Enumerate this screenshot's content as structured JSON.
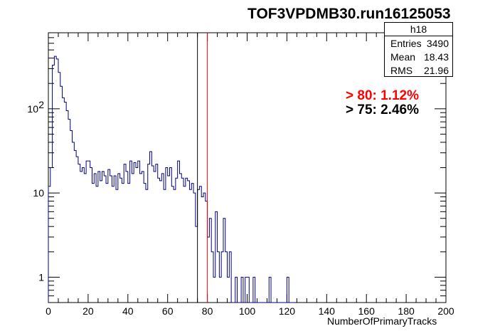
{
  "title": "TOF3VPDMB30.run16125053",
  "stats": {
    "name": "h18",
    "rows": [
      {
        "label": "Entries",
        "value": "3490"
      },
      {
        "label": "Mean",
        "value": "18.43"
      },
      {
        "label": "RMS",
        "value": "21.96"
      }
    ]
  },
  "annotations": {
    "red": "> 80: 1.12%",
    "black": "> 75: 2.46%"
  },
  "colors": {
    "histogram": "#000080",
    "cut80": "#ff0000",
    "cut75": "#000000"
  },
  "chart_data": {
    "type": "line",
    "histogram_style": "step",
    "title": "TOF3VPDMB30.run16125053",
    "xlabel": "NumberOfPrimaryTracks",
    "ylabel": "",
    "xlim": [
      0,
      200
    ],
    "ylim": [
      0.5,
      800
    ],
    "y_scale": "log",
    "x_ticks": [
      0,
      20,
      40,
      60,
      80,
      100,
      120,
      140,
      160,
      180,
      200
    ],
    "y_ticks": [
      {
        "value": 1,
        "label": "1"
      },
      {
        "value": 10,
        "label": "10"
      },
      {
        "value": 100,
        "label": "10",
        "sup": "2"
      }
    ],
    "bin_width": 1,
    "cut_lines": [
      {
        "x": 75,
        "color": "#000000"
      },
      {
        "x": 80,
        "color": "#ff0000"
      }
    ],
    "x": [
      0,
      1,
      2,
      3,
      4,
      5,
      6,
      7,
      8,
      9,
      10,
      11,
      12,
      13,
      14,
      15,
      16,
      17,
      18,
      19,
      20,
      21,
      22,
      23,
      24,
      25,
      26,
      27,
      28,
      29,
      30,
      31,
      32,
      33,
      34,
      35,
      36,
      37,
      38,
      39,
      40,
      41,
      42,
      43,
      44,
      45,
      46,
      47,
      48,
      49,
      50,
      51,
      52,
      53,
      54,
      55,
      56,
      57,
      58,
      59,
      60,
      61,
      62,
      63,
      64,
      65,
      66,
      67,
      68,
      69,
      70,
      71,
      72,
      73,
      74,
      75,
      76,
      77,
      78,
      79,
      80,
      81,
      82,
      83,
      84,
      85,
      86,
      87,
      88,
      89,
      90,
      91,
      92,
      93,
      94,
      95,
      96,
      97,
      98,
      99,
      100,
      101,
      102,
      103,
      104,
      105,
      106,
      107,
      108,
      109,
      110,
      111,
      112,
      113,
      114,
      115,
      116,
      117,
      118,
      119,
      120,
      121,
      122,
      123
    ],
    "values": [
      12,
      20,
      330,
      420,
      390,
      270,
      185,
      135,
      120,
      95,
      75,
      55,
      40,
      32,
      27,
      22,
      18,
      20,
      17,
      24,
      24,
      20,
      13,
      17,
      12,
      18,
      14,
      18,
      16,
      13,
      19,
      16,
      12,
      16,
      11,
      17,
      15,
      13,
      22,
      18,
      13,
      24,
      17,
      23,
      20,
      24,
      17,
      18,
      13,
      11,
      22,
      31,
      21,
      18,
      22,
      15,
      14,
      17,
      11,
      20,
      16,
      20,
      12,
      11,
      15,
      24,
      17,
      15,
      12,
      15,
      14,
      11,
      13,
      10,
      4,
      11,
      12,
      9,
      10,
      8,
      3,
      5,
      2,
      1,
      6,
      2,
      1,
      2,
      5,
      2,
      1,
      2,
      0.5,
      0.5,
      1,
      0.5,
      0.5,
      1,
      0.5,
      1,
      1,
      0.5,
      0.5,
      1,
      0.5,
      0.5,
      0.5,
      0.5,
      0.5,
      0.5,
      0.5,
      1,
      0.5,
      0.5,
      0.5,
      0.5,
      0.5,
      0.5,
      0.5,
      0.5,
      1,
      0.5,
      0.5,
      0.5
    ]
  }
}
